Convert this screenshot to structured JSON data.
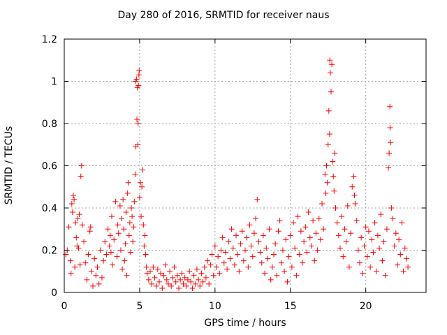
{
  "chart_data": {
    "type": "scatter",
    "title": "Day 280 of 2016, SRMTID for receiver naus",
    "xlabel": "GPS time / hours",
    "ylabel": "SRMTID / TECUs",
    "xlim": [
      0,
      24
    ],
    "ylim": [
      0,
      1.2
    ],
    "xticks": [
      "0",
      "5",
      "10",
      "15",
      "20"
    ],
    "yticks": [
      "0",
      "0.2",
      "0.4",
      "0.6",
      "0.8",
      "1",
      "1.2"
    ],
    "grid": true,
    "legend": "none",
    "marker": "+",
    "color": "#ff0000",
    "points": [
      [
        0.1,
        0.18
      ],
      [
        0.2,
        0.2
      ],
      [
        0.3,
        0.31
      ],
      [
        0.4,
        0.15
      ],
      [
        0.45,
        0.09
      ],
      [
        0.5,
        0.42
      ],
      [
        0.55,
        0.38
      ],
      [
        0.6,
        0.46
      ],
      [
        0.65,
        0.44
      ],
      [
        0.7,
        0.12
      ],
      [
        0.75,
        0.33
      ],
      [
        0.8,
        0.26
      ],
      [
        0.85,
        0.22
      ],
      [
        0.9,
        0.35
      ],
      [
        0.95,
        0.21
      ],
      [
        1.0,
        0.37
      ],
      [
        1.05,
        0.13
      ],
      [
        1.1,
        0.55
      ],
      [
        1.15,
        0.6
      ],
      [
        1.2,
        0.32
      ],
      [
        1.3,
        0.24
      ],
      [
        1.4,
        0.14
      ],
      [
        1.5,
        0.06
      ],
      [
        1.6,
        0.18
      ],
      [
        1.7,
        0.29
      ],
      [
        1.75,
        0.31
      ],
      [
        1.8,
        0.1
      ],
      [
        1.9,
        0.03
      ],
      [
        2.0,
        0.16
      ],
      [
        2.1,
        0.08
      ],
      [
        2.2,
        0.12
      ],
      [
        2.3,
        0.04
      ],
      [
        2.4,
        0.2
      ],
      [
        2.5,
        0.07
      ],
      [
        2.6,
        0.15
      ],
      [
        2.7,
        0.24
      ],
      [
        2.8,
        0.18
      ],
      [
        2.9,
        0.3
      ],
      [
        3.0,
        0.22
      ],
      [
        3.05,
        0.27
      ],
      [
        3.1,
        0.19
      ],
      [
        3.15,
        0.36
      ],
      [
        3.2,
        0.13
      ],
      [
        3.3,
        0.25
      ],
      [
        3.4,
        0.43
      ],
      [
        3.5,
        0.17
      ],
      [
        3.55,
        0.32
      ],
      [
        3.6,
        0.28
      ],
      [
        3.7,
        0.41
      ],
      [
        3.75,
        0.2
      ],
      [
        3.8,
        0.35
      ],
      [
        3.85,
        0.11
      ],
      [
        3.9,
        0.44
      ],
      [
        3.95,
        0.3
      ],
      [
        4.0,
        0.15
      ],
      [
        4.05,
        0.23
      ],
      [
        4.1,
        0.38
      ],
      [
        4.15,
        0.08
      ],
      [
        4.2,
        0.47
      ],
      [
        4.25,
        0.52
      ],
      [
        4.3,
        0.27
      ],
      [
        4.35,
        0.33
      ],
      [
        4.4,
        0.19
      ],
      [
        4.45,
        0.4
      ],
      [
        4.5,
        0.36
      ],
      [
        4.55,
        0.24
      ],
      [
        4.6,
        0.31
      ],
      [
        4.65,
        0.43
      ],
      [
        4.7,
        0.56
      ],
      [
        4.72,
        1.0
      ],
      [
        4.75,
        0.69
      ],
      [
        4.8,
        1.01
      ],
      [
        4.82,
        0.82
      ],
      [
        4.85,
        0.97
      ],
      [
        4.88,
        0.7
      ],
      [
        4.9,
        0.8
      ],
      [
        4.92,
        0.98
      ],
      [
        4.95,
        1.03
      ],
      [
        4.97,
        1.05
      ],
      [
        5.0,
        0.45
      ],
      [
        5.05,
        0.52
      ],
      [
        5.1,
        0.36
      ],
      [
        5.15,
        0.5
      ],
      [
        5.2,
        0.58
      ],
      [
        5.25,
        0.32
      ],
      [
        5.3,
        0.22
      ],
      [
        5.35,
        0.27
      ],
      [
        5.4,
        0.18
      ],
      [
        5.45,
        0.12
      ],
      [
        5.5,
        0.09
      ],
      [
        5.6,
        0.06
      ],
      [
        5.7,
        0.1
      ],
      [
        5.8,
        0.04
      ],
      [
        5.9,
        0.12
      ],
      [
        6.0,
        0.07
      ],
      [
        6.1,
        0.03
      ],
      [
        6.2,
        0.11
      ],
      [
        6.3,
        0.05
      ],
      [
        6.4,
        0.09
      ],
      [
        6.5,
        0.02
      ],
      [
        6.6,
        0.08
      ],
      [
        6.7,
        0.13
      ],
      [
        6.8,
        0.06
      ],
      [
        6.9,
        0.04
      ],
      [
        7.0,
        0.1
      ],
      [
        7.1,
        0.03
      ],
      [
        7.2,
        0.07
      ],
      [
        7.3,
        0.12
      ],
      [
        7.4,
        0.05
      ],
      [
        7.5,
        0.08
      ],
      [
        7.6,
        0.02
      ],
      [
        7.7,
        0.06
      ],
      [
        7.8,
        0.09
      ],
      [
        7.9,
        0.04
      ],
      [
        8.0,
        0.07
      ],
      [
        8.1,
        0.03
      ],
      [
        8.2,
        0.06
      ],
      [
        8.3,
        0.1
      ],
      [
        8.4,
        0.05
      ],
      [
        8.5,
        0.02
      ],
      [
        8.6,
        0.08
      ],
      [
        8.7,
        0.04
      ],
      [
        8.8,
        0.11
      ],
      [
        8.9,
        0.06
      ],
      [
        9.0,
        0.03
      ],
      [
        9.1,
        0.09
      ],
      [
        9.2,
        0.05
      ],
      [
        9.3,
        0.12
      ],
      [
        9.4,
        0.07
      ],
      [
        9.5,
        0.15
      ],
      [
        9.6,
        0.04
      ],
      [
        9.7,
        0.13
      ],
      [
        9.8,
        0.18
      ],
      [
        9.9,
        0.08
      ],
      [
        10.0,
        0.22
      ],
      [
        10.1,
        0.12
      ],
      [
        10.2,
        0.17
      ],
      [
        10.3,
        0.09
      ],
      [
        10.4,
        0.2
      ],
      [
        10.5,
        0.26
      ],
      [
        10.6,
        0.14
      ],
      [
        10.7,
        0.19
      ],
      [
        10.8,
        0.11
      ],
      [
        10.9,
        0.24
      ],
      [
        11.0,
        0.16
      ],
      [
        11.1,
        0.3
      ],
      [
        11.2,
        0.21
      ],
      [
        11.3,
        0.13
      ],
      [
        11.4,
        0.27
      ],
      [
        11.5,
        0.18
      ],
      [
        11.6,
        0.1
      ],
      [
        11.7,
        0.23
      ],
      [
        11.8,
        0.29
      ],
      [
        11.9,
        0.15
      ],
      [
        12.0,
        0.2
      ],
      [
        12.1,
        0.26
      ],
      [
        12.2,
        0.12
      ],
      [
        12.3,
        0.32
      ],
      [
        12.4,
        0.22
      ],
      [
        12.5,
        0.17
      ],
      [
        12.6,
        0.28
      ],
      [
        12.7,
        0.35
      ],
      [
        12.8,
        0.44
      ],
      [
        12.9,
        0.24
      ],
      [
        13.0,
        0.19
      ],
      [
        13.1,
        0.14
      ],
      [
        13.2,
        0.27
      ],
      [
        13.3,
        0.09
      ],
      [
        13.4,
        0.21
      ],
      [
        13.5,
        0.16
      ],
      [
        13.6,
        0.3
      ],
      [
        13.7,
        0.06
      ],
      [
        13.8,
        0.12
      ],
      [
        13.9,
        0.18
      ],
      [
        14.0,
        0.23
      ],
      [
        14.1,
        0.08
      ],
      [
        14.2,
        0.29
      ],
      [
        14.3,
        0.34
      ],
      [
        14.4,
        0.14
      ],
      [
        14.5,
        0.2
      ],
      [
        14.6,
        0.1
      ],
      [
        14.7,
        0.25
      ],
      [
        14.8,
        0.05
      ],
      [
        14.9,
        0.17
      ],
      [
        15.0,
        0.27
      ],
      [
        15.1,
        0.12
      ],
      [
        15.2,
        0.33
      ],
      [
        15.3,
        0.21
      ],
      [
        15.4,
        0.08
      ],
      [
        15.5,
        0.36
      ],
      [
        15.6,
        0.18
      ],
      [
        15.7,
        0.29
      ],
      [
        15.8,
        0.14
      ],
      [
        15.9,
        0.24
      ],
      [
        16.0,
        0.31
      ],
      [
        16.1,
        0.19
      ],
      [
        16.2,
        0.38
      ],
      [
        16.3,
        0.26
      ],
      [
        16.4,
        0.22
      ],
      [
        16.5,
        0.34
      ],
      [
        16.6,
        0.15
      ],
      [
        16.7,
        0.28
      ],
      [
        16.8,
        0.2
      ],
      [
        16.9,
        0.35
      ],
      [
        17.0,
        0.25
      ],
      [
        17.1,
        0.42
      ],
      [
        17.2,
        0.3
      ],
      [
        17.3,
        0.56
      ],
      [
        17.35,
        0.47
      ],
      [
        17.4,
        0.6
      ],
      [
        17.45,
        0.52
      ],
      [
        17.5,
        0.7
      ],
      [
        17.55,
        0.86
      ],
      [
        17.6,
        0.75
      ],
      [
        17.62,
        1.1
      ],
      [
        17.65,
        1.04
      ],
      [
        17.7,
        0.95
      ],
      [
        17.75,
        1.08
      ],
      [
        17.8,
        0.62
      ],
      [
        17.85,
        0.55
      ],
      [
        17.9,
        0.48
      ],
      [
        17.95,
        0.66
      ],
      [
        18.0,
        0.4
      ],
      [
        18.1,
        0.33
      ],
      [
        18.2,
        0.27
      ],
      [
        18.3,
        0.21
      ],
      [
        18.4,
        0.36
      ],
      [
        18.5,
        0.17
      ],
      [
        18.6,
        0.3
      ],
      [
        18.7,
        0.24
      ],
      [
        18.8,
        0.41
      ],
      [
        18.9,
        0.12
      ],
      [
        19.0,
        0.28
      ],
      [
        19.1,
        0.5
      ],
      [
        19.2,
        0.55
      ],
      [
        19.25,
        0.46
      ],
      [
        19.3,
        0.42
      ],
      [
        19.4,
        0.34
      ],
      [
        19.5,
        0.2
      ],
      [
        19.6,
        0.14
      ],
      [
        19.7,
        0.26
      ],
      [
        19.8,
        0.09
      ],
      [
        19.9,
        0.22
      ],
      [
        20.0,
        0.31
      ],
      [
        20.1,
        0.17
      ],
      [
        20.2,
        0.29
      ],
      [
        20.3,
        0.12
      ],
      [
        20.4,
        0.25
      ],
      [
        20.5,
        0.19
      ],
      [
        20.6,
        0.33
      ],
      [
        20.7,
        0.1
      ],
      [
        20.8,
        0.27
      ],
      [
        20.9,
        0.21
      ],
      [
        21.0,
        0.37
      ],
      [
        21.1,
        0.15
      ],
      [
        21.2,
        0.24
      ],
      [
        21.3,
        0.08
      ],
      [
        21.4,
        0.3
      ],
      [
        21.5,
        0.59
      ],
      [
        21.55,
        0.66
      ],
      [
        21.6,
        0.88
      ],
      [
        21.62,
        0.78
      ],
      [
        21.65,
        0.71
      ],
      [
        21.7,
        0.4
      ],
      [
        21.8,
        0.35
      ],
      [
        21.9,
        0.22
      ],
      [
        22.0,
        0.28
      ],
      [
        22.1,
        0.13
      ],
      [
        22.2,
        0.25
      ],
      [
        22.3,
        0.18
      ],
      [
        22.4,
        0.33
      ],
      [
        22.5,
        0.1
      ],
      [
        22.6,
        0.21
      ],
      [
        22.7,
        0.16
      ],
      [
        22.8,
        0.12
      ]
    ]
  }
}
